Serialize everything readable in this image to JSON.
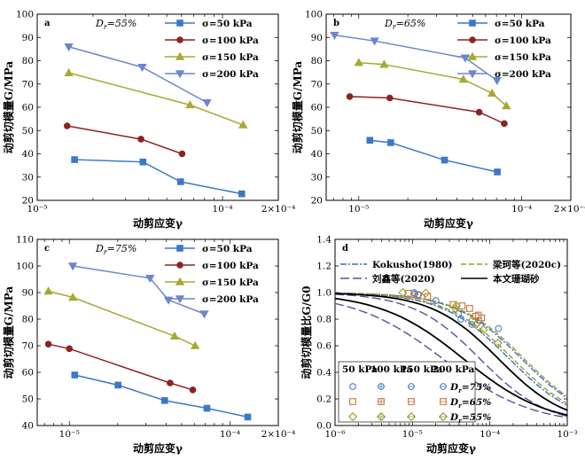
{
  "chart_data": [
    {
      "id": "a",
      "type": "line",
      "panel_label": "a",
      "annotation": "Dr=55%",
      "xlabel": "动剪应变γ",
      "ylabel": "动剪切模量G/MPa",
      "xscale": "log",
      "xlim": [
        1e-05,
        0.0002
      ],
      "ylim": [
        20,
        100
      ],
      "yticks": [
        20,
        30,
        40,
        50,
        60,
        70,
        80,
        90,
        100
      ],
      "xticks": [
        {
          "v": 1e-05,
          "label": "10⁻⁵"
        },
        {
          "v": 0.0001,
          "label": "10⁻⁴"
        },
        {
          "v": 0.0002,
          "label": "2×10⁻⁴"
        }
      ],
      "legend_position": "top-right",
      "series": [
        {
          "name": "σ=50 kPa",
          "color": "#3c78c8",
          "marker": "square",
          "x": [
            1.59e-05,
            3.72e-05,
            5.94e-05,
            0.000127
          ],
          "y": [
            37.5,
            36.5,
            28,
            22.8
          ]
        },
        {
          "name": "σ=100 kPa",
          "color": "#8b2323",
          "marker": "circle",
          "x": [
            1.45e-05,
            3.63e-05,
            6.05e-05
          ],
          "y": [
            52,
            46.3,
            40
          ]
        },
        {
          "name": "σ=150 kPa",
          "color": "#a8a832",
          "marker": "triangle-up",
          "x": [
            1.48e-05,
            6.67e-05,
            0.000129
          ],
          "y": [
            74.8,
            61,
            52.4
          ]
        },
        {
          "name": "σ=200 kPa",
          "color": "#6c86cc",
          "marker": "triangle-down",
          "x": [
            1.48e-05,
            3.69e-05,
            8.25e-05
          ],
          "y": [
            86,
            77.2,
            62
          ]
        }
      ]
    },
    {
      "id": "b",
      "type": "line",
      "panel_label": "b",
      "annotation": "Dr=65%",
      "xlabel": "动剪应变γ",
      "ylabel": "动剪切模量G/MPa",
      "xscale": "log",
      "xlim": [
        6.31e-06,
        0.0002
      ],
      "ylim": [
        20,
        100
      ],
      "yticks": [
        20,
        30,
        40,
        50,
        60,
        70,
        80,
        90,
        100
      ],
      "xticks": [
        {
          "v": 1e-05,
          "label": "10⁻⁵"
        },
        {
          "v": 0.0001,
          "label": "10⁻⁴"
        },
        {
          "v": 0.0002,
          "label": "2×10⁻⁴"
        }
      ],
      "legend_position": "top-right",
      "series": [
        {
          "name": "σ=50 kPa",
          "color": "#3c78c8",
          "marker": "square",
          "x": [
            1.17e-05,
            1.57e-05,
            3.36e-05,
            7.08e-05
          ],
          "y": [
            45.8,
            44.8,
            37.3,
            32.2
          ]
        },
        {
          "name": "σ=100 kPa",
          "color": "#8b2323",
          "marker": "circle",
          "x": [
            8.8e-06,
            1.55e-05,
            5.48e-05,
            7.81e-05
          ],
          "y": [
            64.6,
            64,
            57.9,
            53
          ]
        },
        {
          "name": "σ=150 kPa",
          "color": "#a8a832",
          "marker": "triangle-up",
          "x": [
            1e-05,
            1.43e-05,
            4.38e-05,
            6.57e-05,
            8.05e-05
          ],
          "y": [
            79.2,
            78.4,
            72,
            66,
            60.6
          ]
        },
        {
          "name": "σ=200 kPa",
          "color": "#6c86cc",
          "marker": "triangle-down",
          "x": [
            7.1e-06,
            1.25e-05,
            4.5e-05,
            7.05e-05
          ],
          "y": [
            91,
            88.5,
            81.2,
            71.5
          ]
        }
      ]
    },
    {
      "id": "c",
      "type": "line",
      "panel_label": "c",
      "annotation": "Dr=75%",
      "xlabel": "动剪应变γ",
      "ylabel": "动剪切模量G/MPa",
      "xscale": "log",
      "xlim": [
        6.31e-06,
        0.0002
      ],
      "ylim": [
        40,
        110
      ],
      "yticks": [
        40,
        50,
        60,
        70,
        80,
        90,
        100,
        110
      ],
      "xticks": [
        {
          "v": 1e-05,
          "label": "10⁻⁵"
        },
        {
          "v": 0.0001,
          "label": "10⁻⁴"
        },
        {
          "v": 0.0002,
          "label": "2×10⁻⁴"
        }
      ],
      "legend_position": "top-right",
      "series": [
        {
          "name": "σ=50 kPa",
          "color": "#3c78c8",
          "marker": "square",
          "x": [
            1.08e-05,
            2.01e-05,
            3.92e-05,
            7.19e-05,
            0.000129
          ],
          "y": [
            59,
            55.2,
            49.4,
            46.5,
            43.2
          ]
        },
        {
          "name": "σ=100 kPa",
          "color": "#8b2323",
          "marker": "circle",
          "x": [
            7.4e-06,
            1e-05,
            4.24e-05,
            5.87e-05
          ],
          "y": [
            70.6,
            68.9,
            56,
            53.4
          ]
        },
        {
          "name": "σ=150 kPa",
          "color": "#a8a832",
          "marker": "triangle-up",
          "x": [
            7.4e-06,
            1.05e-05,
            4.52e-05,
            6.07e-05
          ],
          "y": [
            90.5,
            88.2,
            73.6,
            70
          ]
        },
        {
          "name": "σ=200 kPa",
          "color": "#6c86cc",
          "marker": "triangle-down",
          "x": [
            1.05e-05,
            3.18e-05,
            4.14e-05,
            6.92e-05
          ],
          "y": [
            100,
            95.4,
            87.2,
            82
          ]
        }
      ]
    },
    {
      "id": "d",
      "type": "line",
      "panel_label": "d",
      "xlabel": "动剪应变γ",
      "ylabel": "动剪切模量比G/G0",
      "xscale": "log",
      "xlim": [
        1e-06,
        0.001
      ],
      "ylim": [
        0,
        1.4
      ],
      "yticks": [
        0.0,
        0.2,
        0.4,
        0.6,
        0.8,
        1.0,
        1.2,
        1.4
      ],
      "xticks": [
        {
          "v": 1e-06,
          "label": "10⁻⁶"
        },
        {
          "v": 1e-05,
          "label": "10⁻⁵"
        },
        {
          "v": 0.0001,
          "label": "10⁻⁴"
        },
        {
          "v": 0.001,
          "label": "10⁻³"
        }
      ],
      "curve_legend_position": "top",
      "curve_legend": [
        {
          "name": "Kokusho(1980)",
          "color": "#3a6ec0",
          "dash": "dashdot"
        },
        {
          "name": "梁珂等(2020c)",
          "color": "#9a9a30",
          "dash": "dash"
        },
        {
          "name": "刘鑫等(2020)",
          "color": "#5550a0",
          "dash": "longdash"
        },
        {
          "name": "本文珊瑚砂",
          "color": "#000000",
          "dash": "solid"
        }
      ],
      "curves": [
        {
          "name": "Kokusho upper",
          "color": "#3a6ec0",
          "dash": "dashdot",
          "gr": 0.00026,
          "a": 1.0
        },
        {
          "name": "Kokusho lower",
          "color": "#3a6ec0",
          "dash": "dashdot",
          "gr": 0.00018,
          "a": 1.0
        },
        {
          "name": "Liang upper",
          "color": "#9a9a30",
          "dash": "dash",
          "gr": 0.00028,
          "a": 1.0
        },
        {
          "name": "Liang lower",
          "color": "#9a9a30",
          "dash": "dash",
          "gr": 0.0002,
          "a": 1.0
        },
        {
          "name": "Liu upper",
          "color": "#5550a0",
          "dash": "longdash",
          "gr": 7.5e-05,
          "a": 1.0
        },
        {
          "name": "Liu lower",
          "color": "#5550a0",
          "dash": "longdash",
          "gr": 2.5e-05,
          "a": 0.75
        },
        {
          "name": "Present upper",
          "color": "#000000",
          "dash": "solid",
          "gr": 0.00013,
          "a": 1.0
        },
        {
          "name": "Present lower",
          "color": "#000000",
          "dash": "solid",
          "gr": 4.6e-05,
          "a": 0.8
        }
      ],
      "marker_legend": {
        "columns": [
          "50 kPa",
          "100 kPa",
          "150 kPa",
          "200 kPa"
        ],
        "rows": [
          {
            "label": "Dr=75%",
            "color": "#4a7ccc",
            "marker": "circle"
          },
          {
            "label": "Dr=65%",
            "color": "#d0703a",
            "marker": "square"
          },
          {
            "label": "Dr=55%",
            "color": "#9a9a30",
            "marker": "diamond"
          }
        ]
      },
      "scatter": [
        {
          "color": "#4a7ccc",
          "marker": "circle",
          "points": [
            [
              1.08e-05,
              0.99
            ],
            [
              1.2e-05,
              0.985
            ],
            [
              2.01e-05,
              0.94
            ],
            [
              3.92e-05,
              0.84
            ],
            [
              7.19e-05,
              0.79
            ],
            [
              0.000129,
              0.73
            ],
            [
              1.05e-05,
              1.0
            ],
            [
              4.24e-05,
              0.8
            ],
            [
              5.87e-05,
              0.76
            ]
          ]
        },
        {
          "color": "#d0703a",
          "marker": "square",
          "points": [
            [
              8.8e-06,
              0.995
            ],
            [
              1.17e-05,
              0.98
            ],
            [
              1.57e-05,
              0.97
            ],
            [
              3.36e-05,
              0.91
            ],
            [
              5.48e-05,
              0.88
            ],
            [
              7.08e-05,
              0.83
            ],
            [
              7.81e-05,
              0.81
            ],
            [
              4.38e-05,
              0.9
            ],
            [
              6.57e-05,
              0.82
            ]
          ]
        },
        {
          "color": "#9a9a30",
          "marker": "diamond",
          "points": [
            [
              7.5e-06,
              1.0
            ],
            [
              1.48e-05,
              0.995
            ],
            [
              3.63e-05,
              0.88
            ],
            [
              5.94e-05,
              0.79
            ],
            [
              6.67e-05,
              0.76
            ],
            [
              0.000127,
              0.62
            ],
            [
              3.69e-05,
              0.9
            ],
            [
              8.25e-05,
              0.72
            ]
          ]
        }
      ]
    }
  ]
}
